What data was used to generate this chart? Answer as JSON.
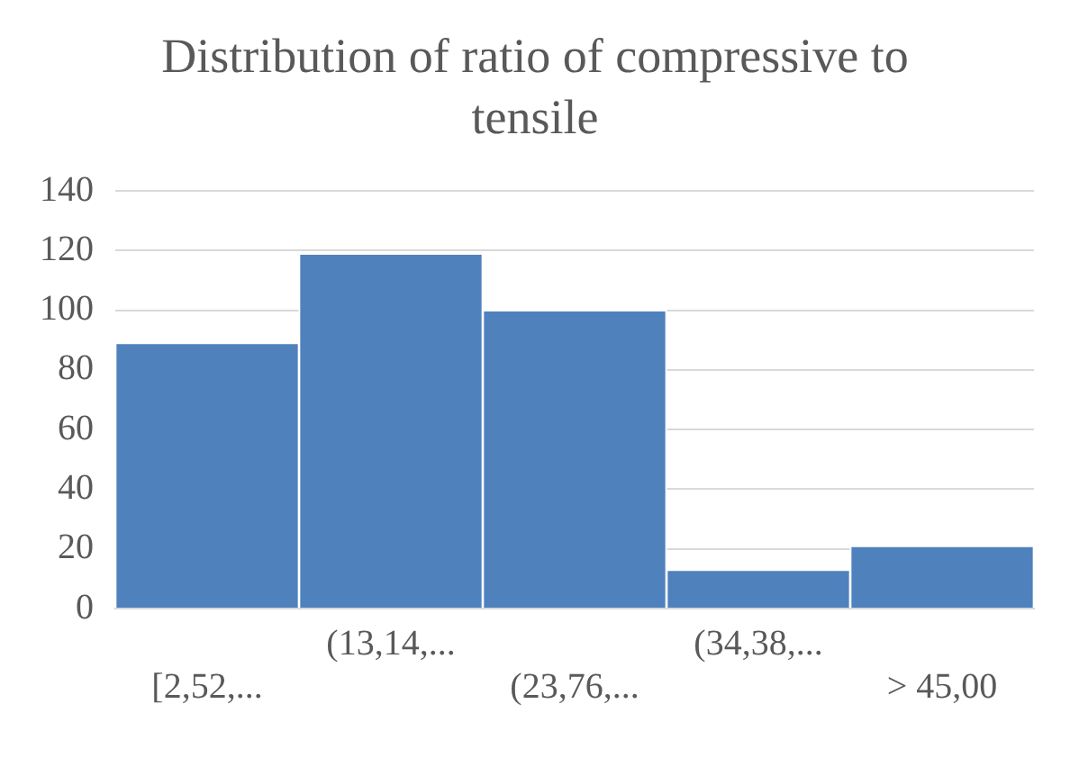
{
  "chart_data": {
    "type": "bar",
    "title": "Distribution of ratio of compressive to tensile",
    "categories": [
      "[2,52,...",
      "(13,14,...",
      "(23,76,...",
      "(34,38,...",
      "> 45,00"
    ],
    "values": [
      89,
      119,
      100,
      13,
      21
    ],
    "color": "#4f81bd",
    "ylim": [
      0,
      140
    ],
    "yticks": [
      0,
      20,
      40,
      60,
      80,
      100,
      120,
      140
    ],
    "grid": "y"
  }
}
